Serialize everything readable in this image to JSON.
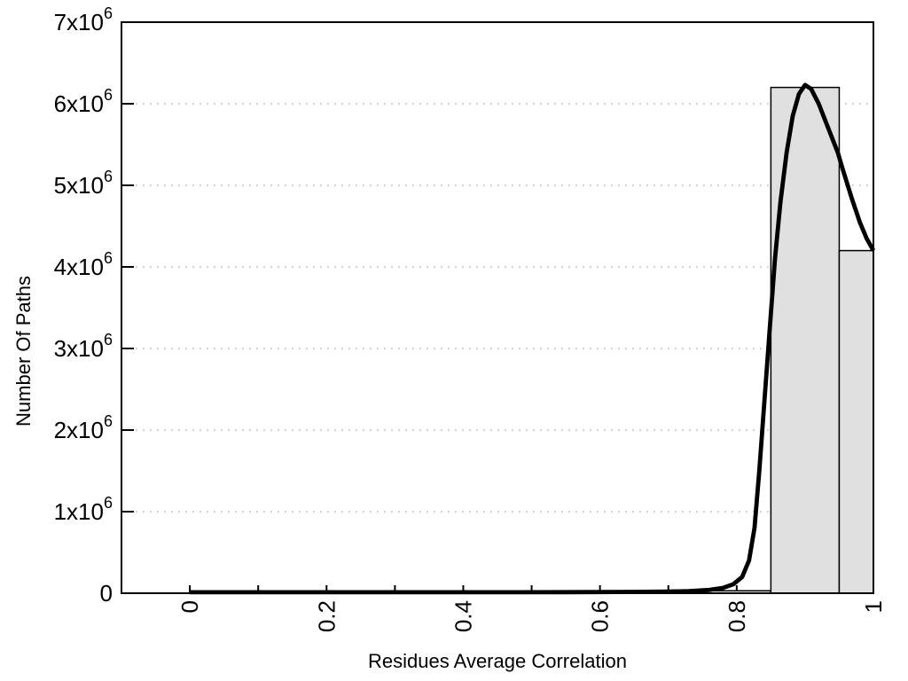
{
  "chart_data": {
    "type": "bar",
    "subtype": "histogram_with_density_curve",
    "title": "",
    "xlabel": "Residues Average Correlation",
    "ylabel": "Number Of Paths",
    "xlim": [
      -0.1,
      1.0
    ],
    "ylim": [
      0,
      7000000
    ],
    "grid": "horizontal_dotted",
    "legend_position": "none",
    "x_minor_tick_step": 0.1,
    "xticks": [
      {
        "value": 0.0,
        "label": "0"
      },
      {
        "value": 0.2,
        "label": "0.2"
      },
      {
        "value": 0.4,
        "label": "0.4"
      },
      {
        "value": 0.6,
        "label": "0.6"
      },
      {
        "value": 0.8,
        "label": "0.8"
      },
      {
        "value": 1.0,
        "label": "1"
      }
    ],
    "yticks": [
      {
        "value": 0,
        "base": "0",
        "sup": ""
      },
      {
        "value": 1000000,
        "base": "1x10",
        "sup": "6"
      },
      {
        "value": 2000000,
        "base": "2x10",
        "sup": "6"
      },
      {
        "value": 3000000,
        "base": "3x10",
        "sup": "6"
      },
      {
        "value": 4000000,
        "base": "4x10",
        "sup": "6"
      },
      {
        "value": 5000000,
        "base": "5x10",
        "sup": "6"
      },
      {
        "value": 6000000,
        "base": "6x10",
        "sup": "6"
      },
      {
        "value": 7000000,
        "base": "7x10",
        "sup": "6"
      }
    ],
    "bars": [
      {
        "x0": 0.75,
        "x1": 0.85,
        "value": 30000
      },
      {
        "x0": 0.85,
        "x1": 0.95,
        "value": 6200000
      },
      {
        "x0": 0.95,
        "x1": 1.0,
        "value": 4200000
      }
    ],
    "curve": {
      "name": "density",
      "points": [
        [
          0.0,
          12000
        ],
        [
          0.05,
          12000
        ],
        [
          0.1,
          12000
        ],
        [
          0.15,
          12000
        ],
        [
          0.2,
          12000
        ],
        [
          0.25,
          12000
        ],
        [
          0.3,
          12000
        ],
        [
          0.35,
          12000
        ],
        [
          0.4,
          12000
        ],
        [
          0.45,
          12000
        ],
        [
          0.5,
          12000
        ],
        [
          0.55,
          13000
        ],
        [
          0.6,
          14000
        ],
        [
          0.65,
          16000
        ],
        [
          0.7,
          20000
        ],
        [
          0.73,
          26000
        ],
        [
          0.76,
          40000
        ],
        [
          0.78,
          65000
        ],
        [
          0.795,
          110000
        ],
        [
          0.808,
          200000
        ],
        [
          0.818,
          400000
        ],
        [
          0.826,
          800000
        ],
        [
          0.833,
          1500000
        ],
        [
          0.84,
          2300000
        ],
        [
          0.848,
          3200000
        ],
        [
          0.856,
          4100000
        ],
        [
          0.864,
          4800000
        ],
        [
          0.873,
          5400000
        ],
        [
          0.882,
          5850000
        ],
        [
          0.891,
          6120000
        ],
        [
          0.9,
          6230000
        ],
        [
          0.909,
          6180000
        ],
        [
          0.92,
          6000000
        ],
        [
          0.934,
          5700000
        ],
        [
          0.948,
          5400000
        ],
        [
          0.955,
          5200000
        ],
        [
          0.968,
          4850000
        ],
        [
          0.98,
          4550000
        ],
        [
          0.99,
          4350000
        ],
        [
          1.0,
          4200000
        ]
      ]
    },
    "colors": {
      "background": "#ffffff",
      "bar_fill": "#e0e0e0",
      "bar_stroke": "#000000",
      "curve": "#000000",
      "grid": "#c0c0c0",
      "axis": "#000000",
      "text": "#000000"
    }
  }
}
